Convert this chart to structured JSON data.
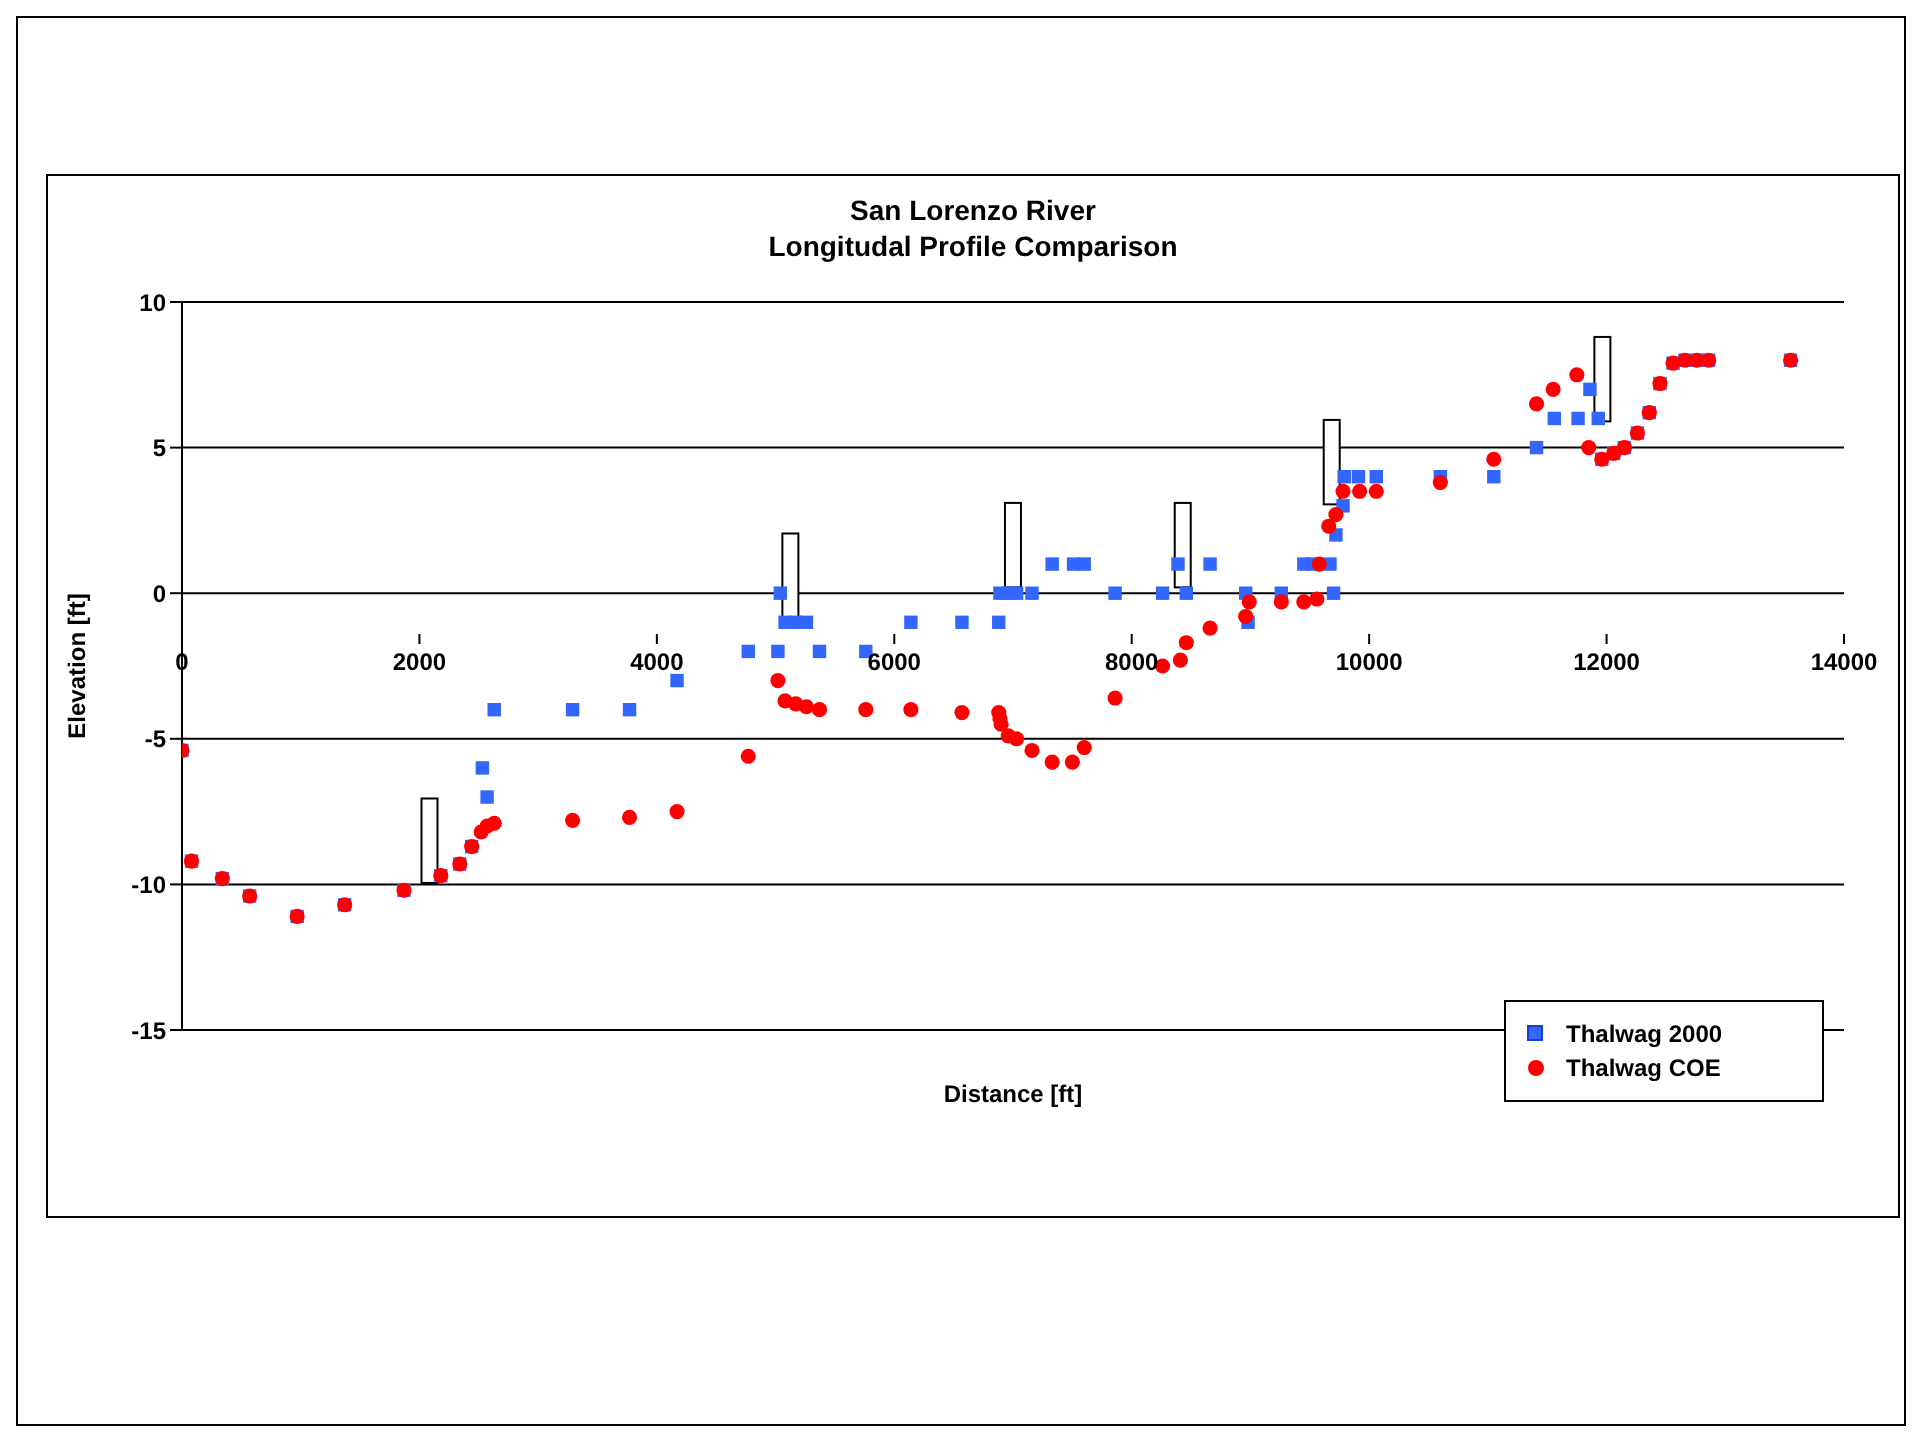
{
  "chart_data": {
    "type": "scatter",
    "title": "San Lorenzo River",
    "subtitle": "Longitudal Profile Comparison",
    "xlabel": "Distance [ft]",
    "ylabel": "Elevation [ft]",
    "xlim": [
      0,
      14000
    ],
    "xticks": [
      0,
      2000,
      4000,
      6000,
      8000,
      10000,
      12000,
      14000
    ],
    "ylim": [
      -15,
      10
    ],
    "yticks": [
      -15,
      -10,
      -5,
      0,
      5,
      10
    ],
    "grid": "y",
    "legend": "bottom right",
    "series": [
      {
        "type": "bar",
        "color": "#ffffff",
        "x": [
          2085,
          5125,
          7000,
          8430,
          9685,
          11965
        ],
        "base": [
          -9.95,
          -0.85,
          0.2,
          0.2,
          3.05,
          5.9
        ],
        "values": [
          2.9,
          2.9,
          2.9,
          2.9,
          2.9,
          2.9
        ]
      },
      {
        "name": "Thalwag 2000",
        "color": "#3366ff",
        "marker": "square",
        "x": [
          0,
          80,
          340,
          570,
          970,
          1370,
          1870,
          2180,
          2340,
          2440,
          2530,
          2570,
          2630,
          3290,
          3770,
          4170,
          4770,
          5020,
          5040,
          5080,
          5170,
          5260,
          5370,
          5760,
          6140,
          6570,
          6880,
          6890,
          6960,
          7030,
          7160,
          7330,
          7510,
          7600,
          7860,
          8260,
          8390,
          8460,
          8660,
          8960,
          8980,
          9260,
          9450,
          9520,
          9670,
          9700,
          9720,
          9780,
          9790,
          9910,
          10060,
          10600,
          11050,
          11410,
          11560,
          11760,
          11860,
          11930,
          11960,
          12060,
          12150,
          12260,
          12360,
          12450,
          12560,
          12660,
          12760,
          12860,
          13550
        ],
        "values": [
          -5.4,
          -9.2,
          -9.8,
          -10.4,
          -11.1,
          -10.7,
          -10.2,
          -9.7,
          -9.3,
          -8.7,
          -6,
          -7,
          -4,
          -4,
          -4,
          -3,
          -2,
          -2,
          0,
          -1,
          -1,
          -1,
          -2,
          -2,
          -1,
          -1,
          -1,
          0,
          0,
          0,
          0,
          1,
          1,
          1,
          0,
          0,
          1,
          0,
          1,
          0,
          -1,
          0,
          1,
          1,
          1,
          0,
          2,
          3,
          4,
          4,
          4,
          4,
          4,
          5,
          6,
          6,
          7,
          6,
          4.6,
          4.8,
          5,
          5.5,
          6.2,
          7.2,
          7.9,
          8,
          8,
          8,
          8
        ]
      },
      {
        "name": "Thalwag COE",
        "color": "#ff0000",
        "marker": "circle",
        "x": [
          0,
          80,
          340,
          570,
          970,
          1370,
          1870,
          2180,
          2340,
          2440,
          2520,
          2570,
          2630,
          3290,
          3770,
          4170,
          4770,
          5020,
          5080,
          5170,
          5260,
          5370,
          5760,
          6140,
          6570,
          6880,
          6890,
          6900,
          6960,
          7030,
          7160,
          7330,
          7500,
          7600,
          7860,
          8260,
          8410,
          8460,
          8660,
          8960,
          8990,
          9260,
          9450,
          9560,
          9580,
          9660,
          9720,
          9780,
          9920,
          10060,
          10600,
          11050,
          11410,
          11550,
          11750,
          11850,
          11960,
          12060,
          12150,
          12260,
          12360,
          12450,
          12560,
          12660,
          12760,
          12860,
          13550
        ],
        "values": [
          -5.4,
          -9.2,
          -9.8,
          -10.4,
          -11.1,
          -10.7,
          -10.2,
          -9.7,
          -9.3,
          -8.7,
          -8.2,
          -8,
          -7.9,
          -7.8,
          -7.7,
          -7.5,
          -5.6,
          -3,
          -3.7,
          -3.8,
          -3.9,
          -4,
          -4,
          -4,
          -4.1,
          -4.1,
          -4.3,
          -4.5,
          -4.9,
          -5,
          -5.4,
          -5.8,
          -5.8,
          -5.3,
          -3.6,
          -2.5,
          -2.3,
          -1.7,
          -1.2,
          -0.8,
          -0.3,
          -0.3,
          -0.3,
          -0.2,
          1,
          2.3,
          2.7,
          3.5,
          3.5,
          3.5,
          3.8,
          4.6,
          6.5,
          7,
          7.5,
          5,
          4.6,
          4.8,
          5,
          5.5,
          6.2,
          7.2,
          7.9,
          8,
          8,
          8,
          8
        ]
      }
    ]
  }
}
